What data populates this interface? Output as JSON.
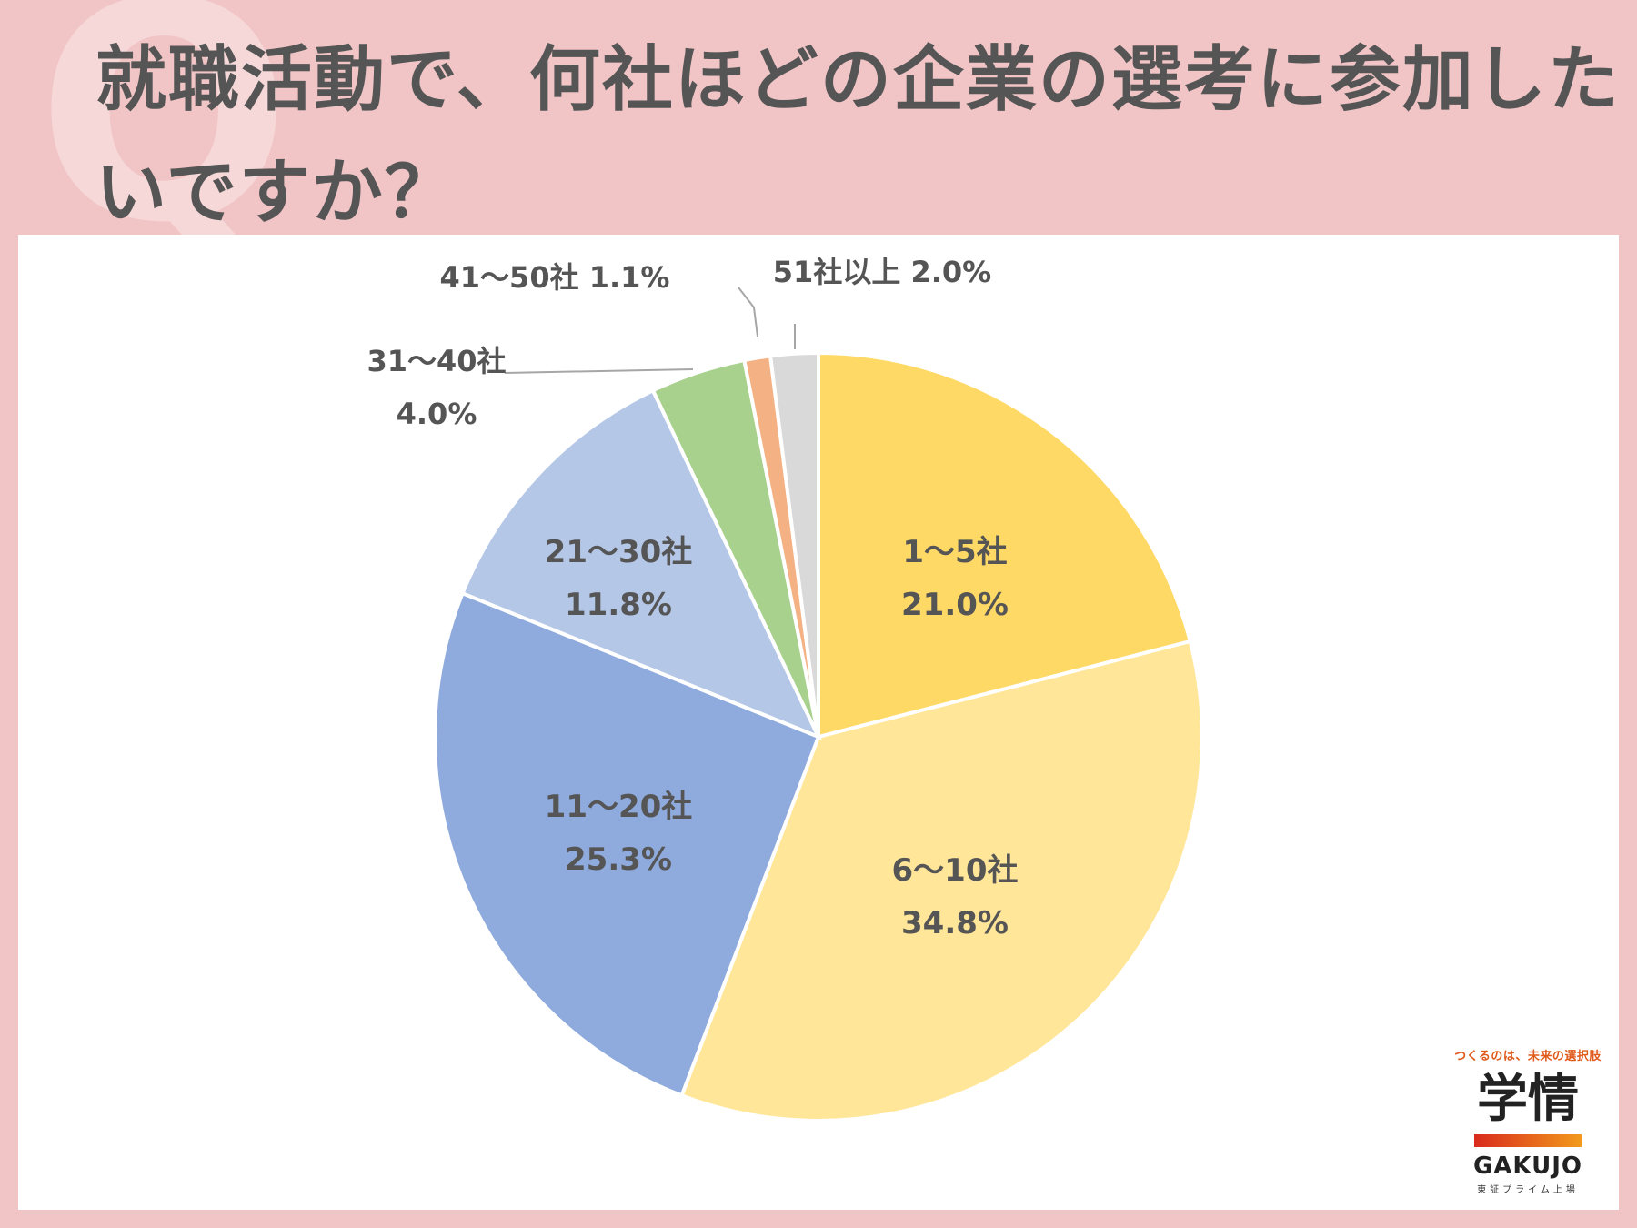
{
  "header": {
    "title": "就職活動で、何社ほどの企業の選考に参加したいですか？"
  },
  "logo": {
    "tagline": "つくるのは、未来の選択肢",
    "kanji": "学情",
    "brand": "GAKUJO",
    "sub": "東証プライム上場"
  },
  "chart_data": {
    "type": "pie",
    "title": "就職活動で、何社ほどの企業の選考に参加したいですか？",
    "unit": "%",
    "slices": [
      {
        "label": "1～5社",
        "value": 21.0,
        "value_label": "21.0%",
        "color": "#ffd966"
      },
      {
        "label": "6～10社",
        "value": 34.8,
        "value_label": "34.8%",
        "color": "#ffe699"
      },
      {
        "label": "11～20社",
        "value": 25.3,
        "value_label": "25.3%",
        "color": "#8faadc"
      },
      {
        "label": "21～30社",
        "value": 11.8,
        "value_label": "11.8%",
        "color": "#b4c7e7"
      },
      {
        "label": "31～40社",
        "value": 4.0,
        "value_label": "4.0%",
        "color": "#a9d18e"
      },
      {
        "label": "41～50社",
        "value": 1.1,
        "value_label": "1.1%",
        "color": "#f4b183"
      },
      {
        "label": "51社以上",
        "value": 2.0,
        "value_label": "2.0%",
        "color": "#d9d9d9"
      }
    ]
  }
}
